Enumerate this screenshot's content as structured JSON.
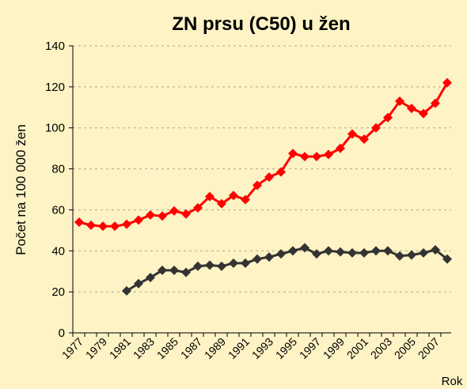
{
  "chart_data": {
    "type": "line",
    "title": "ZN prsu (C50) u žen",
    "y_label": "Počet na 100 000 žen",
    "x_label": "Rok",
    "categories": [
      "1977",
      null,
      "1979",
      null,
      "1981",
      null,
      "1983",
      null,
      "1985",
      null,
      "1987",
      null,
      "1989",
      null,
      "1991",
      null,
      "1993",
      null,
      "1995",
      null,
      "1997",
      null,
      "1999",
      null,
      "2001",
      null,
      "2003",
      null,
      "2005",
      null,
      "2007",
      null
    ],
    "series": [
      {
        "color": "#ff0000",
        "values": [
          54,
          52.5,
          52,
          52,
          53,
          55,
          57.5,
          57,
          59.5,
          58,
          61,
          66.5,
          63,
          67,
          65,
          72,
          76,
          78.5,
          87.5,
          86,
          86,
          87,
          90,
          97,
          94.5,
          100,
          105,
          113,
          109.5,
          107,
          112,
          122
        ]
      },
      {
        "color": "#333333",
        "values": [
          null,
          null,
          null,
          null,
          20.5,
          24,
          27,
          30.5,
          30.5,
          29.5,
          32.5,
          33,
          32.5,
          34,
          34,
          36,
          37,
          38.5,
          40,
          41.5,
          38.5,
          40,
          39.5,
          39,
          39,
          40,
          40,
          37.5,
          38,
          39,
          40.5,
          36
        ]
      }
    ],
    "ylim": [
      0,
      140
    ],
    "yticks": [
      0,
      20,
      40,
      60,
      80,
      100,
      120,
      140
    ],
    "grid": true
  }
}
